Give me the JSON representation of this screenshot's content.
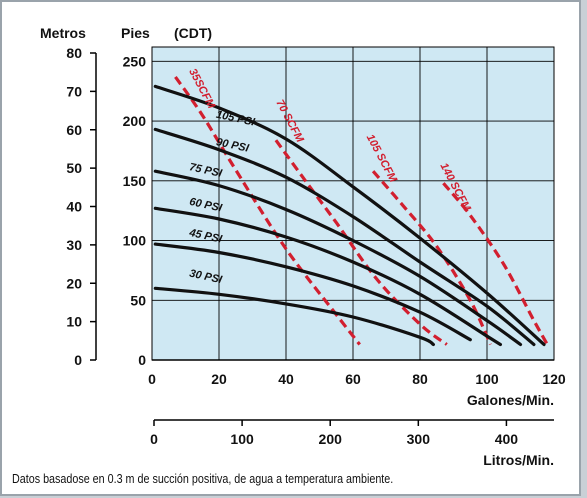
{
  "chart_data": {
    "type": "line",
    "header_labels": {
      "metros": "Metros",
      "pies": "Pies",
      "cdt": "(CDT)"
    },
    "x_gpm": {
      "label": "Galones/Min.",
      "range": [
        0,
        120
      ],
      "ticks": [
        {
          "value": 0,
          "label": "0"
        },
        {
          "value": 20,
          "label": "20"
        },
        {
          "value": 40,
          "label": "40"
        },
        {
          "value": 60,
          "label": "60"
        },
        {
          "value": 80,
          "label": "80"
        },
        {
          "value": 100,
          "label": "100"
        },
        {
          "value": 120,
          "label": "120"
        }
      ]
    },
    "x_lpm": {
      "label": "Litros/Min.",
      "range": [
        0,
        454
      ],
      "ticks": [
        {
          "value": 0,
          "label": "0"
        },
        {
          "value": 100,
          "label": "100"
        },
        {
          "value": 200,
          "label": "200"
        },
        {
          "value": 300,
          "label": "300"
        },
        {
          "value": 400,
          "label": "400"
        }
      ]
    },
    "y_feet": {
      "range": [
        0,
        262
      ],
      "ticks": [
        {
          "value": 0,
          "label": "0"
        },
        {
          "value": 50,
          "label": "50"
        },
        {
          "value": 100,
          "label": "100"
        },
        {
          "value": 150,
          "label": "150"
        },
        {
          "value": 200,
          "label": "200"
        },
        {
          "value": 250,
          "label": "250"
        }
      ]
    },
    "y_meters": {
      "range": [
        0,
        80
      ],
      "ticks": [
        {
          "value": 0,
          "label": "0"
        },
        {
          "value": 10,
          "label": "10"
        },
        {
          "value": 20,
          "label": "20"
        },
        {
          "value": 30,
          "label": "30"
        },
        {
          "value": 40,
          "label": "40"
        },
        {
          "value": 50,
          "label": "50"
        },
        {
          "value": 60,
          "label": "60"
        },
        {
          "value": 70,
          "label": "70"
        },
        {
          "value": 80,
          "label": "80"
        }
      ]
    },
    "grid": true,
    "pressure_curves": [
      {
        "name": "105 PSI",
        "label_at": [
          19,
          203
        ],
        "points": [
          [
            1,
            229
          ],
          [
            20,
            211
          ],
          [
            40,
            185
          ],
          [
            60,
            145
          ],
          [
            80,
            102
          ],
          [
            100,
            56
          ],
          [
            117,
            13
          ]
        ]
      },
      {
        "name": "90 PSI",
        "label_at": [
          19,
          180
        ],
        "points": [
          [
            1,
            193
          ],
          [
            20,
            176
          ],
          [
            40,
            153
          ],
          [
            60,
            120
          ],
          [
            80,
            82
          ],
          [
            100,
            45
          ],
          [
            114,
            13
          ]
        ]
      },
      {
        "name": "75 PSI",
        "label_at": [
          11,
          159
        ],
        "points": [
          [
            1,
            158
          ],
          [
            20,
            146
          ],
          [
            40,
            126
          ],
          [
            60,
            100
          ],
          [
            80,
            70
          ],
          [
            100,
            33
          ],
          [
            110,
            13
          ]
        ]
      },
      {
        "name": "60 PSI",
        "label_at": [
          11,
          130
        ],
        "points": [
          [
            1,
            127
          ],
          [
            20,
            118
          ],
          [
            40,
            103
          ],
          [
            60,
            82
          ],
          [
            80,
            55
          ],
          [
            100,
            20
          ],
          [
            104,
            13
          ]
        ]
      },
      {
        "name": "45 PSI",
        "label_at": [
          11,
          104
        ],
        "points": [
          [
            1,
            97
          ],
          [
            20,
            90
          ],
          [
            40,
            78
          ],
          [
            60,
            62
          ],
          [
            80,
            40
          ],
          [
            95,
            17
          ]
        ]
      },
      {
        "name": "30 PSI",
        "label_at": [
          11,
          70
        ],
        "points": [
          [
            1,
            60
          ],
          [
            20,
            55
          ],
          [
            40,
            47
          ],
          [
            60,
            36
          ],
          [
            80,
            19
          ],
          [
            84,
            13
          ]
        ]
      }
    ],
    "air_curves": [
      {
        "name": "35SCFM",
        "label_at": [
          11,
          242
        ],
        "points": [
          [
            7,
            237
          ],
          [
            15,
            205
          ],
          [
            25,
            159
          ],
          [
            40,
            93
          ],
          [
            55,
            38
          ],
          [
            62,
            13
          ]
        ]
      },
      {
        "name": "70 SCFM",
        "label_at": [
          37,
          216
        ],
        "points": [
          [
            37,
            184
          ],
          [
            45,
            153
          ],
          [
            55,
            115
          ],
          [
            67,
            68
          ],
          [
            80,
            30
          ],
          [
            88,
            13
          ]
        ]
      },
      {
        "name": "105 SCFM",
        "label_at": [
          64,
          187
        ],
        "points": [
          [
            66,
            158
          ],
          [
            75,
            129
          ],
          [
            85,
            95
          ],
          [
            95,
            50
          ],
          [
            101,
            13
          ]
        ]
      },
      {
        "name": "140 SCFM",
        "label_at": [
          86,
          163
        ],
        "points": [
          [
            87,
            148
          ],
          [
            95,
            121
          ],
          [
            105,
            80
          ],
          [
            114,
            33
          ],
          [
            118,
            13
          ]
        ]
      }
    ],
    "colors": {
      "plot_bg": "#cfe8f3",
      "grid": "#000000",
      "pressure_curve": "#111111",
      "air_curve": "#d21f2f",
      "air_label": "#d21f2f"
    },
    "footnote": "Datos basadose en 0.3 m de succión positiva, de agua a temperatura ambiente."
  }
}
